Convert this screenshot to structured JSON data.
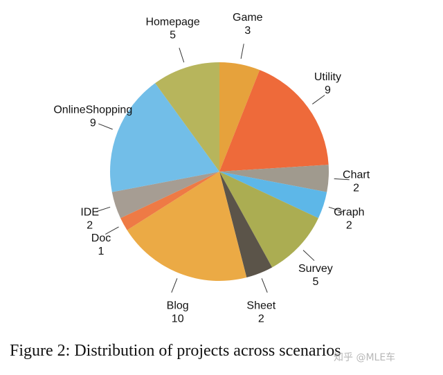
{
  "chart_data": {
    "type": "pie",
    "title": "",
    "start": "top, clockwise",
    "slices": [
      {
        "label": "Game",
        "value": 3,
        "color": "#E6A23C"
      },
      {
        "label": "Utility",
        "value": 9,
        "color": "#EE6A3A"
      },
      {
        "label": "Chart",
        "value": 2,
        "color": "#A09A8E"
      },
      {
        "label": "Graph",
        "value": 2,
        "color": "#5DB7E8"
      },
      {
        "label": "Survey",
        "value": 5,
        "color": "#ABAD52"
      },
      {
        "label": "Sheet",
        "value": 2,
        "color": "#5B5449"
      },
      {
        "label": "Blog",
        "value": 10,
        "color": "#EBAA45"
      },
      {
        "label": "Doc",
        "value": 1,
        "color": "#EE7A45"
      },
      {
        "label": "IDE",
        "value": 2,
        "color": "#A69D93"
      },
      {
        "label": "OnlineShopping",
        "value": 9,
        "color": "#72BEE8"
      },
      {
        "label": "Homepage",
        "value": 5,
        "color": "#B7B55C"
      }
    ]
  },
  "caption": "Figure 2: Distribution of projects across scenarios",
  "watermark": "知乎 @MLE车"
}
